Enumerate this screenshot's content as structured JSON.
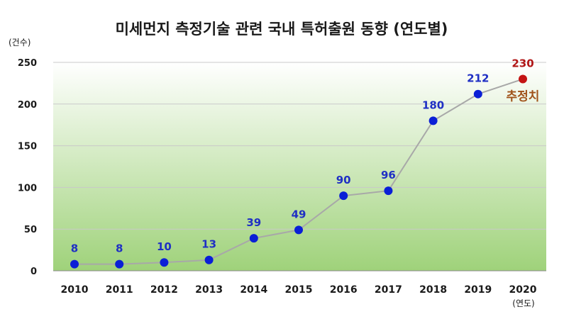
{
  "chart_data": {
    "type": "line",
    "title": "미세먼지 측정기술 관련 국내 특허출원 동향 (연도별)",
    "y_unit_label": "(건수)",
    "x_unit_label": "(연도)",
    "categories": [
      "2010",
      "2011",
      "2012",
      "2013",
      "2014",
      "2015",
      "2016",
      "2017",
      "2018",
      "2019",
      "2020"
    ],
    "series": [
      {
        "values": [
          8,
          8,
          10,
          13,
          39,
          49,
          90,
          96,
          180,
          212,
          230
        ]
      }
    ],
    "estimated_index": 10,
    "estimated_label": "추정치",
    "ylim": [
      0,
      250
    ],
    "yticks": [
      0,
      50,
      100,
      150,
      200,
      250
    ],
    "grid": true,
    "colors": {
      "point": "#0a1fd6",
      "estimated_point": "#c41414",
      "line": "#a8a8a8",
      "label": "#1f2fc4",
      "estimated_label": "#b01515",
      "estimated_note": "#a0521a",
      "plot_bg_top": "#ffffff",
      "plot_bg_bottom": "#9fd27a",
      "grid": "#c9c9c9"
    }
  }
}
